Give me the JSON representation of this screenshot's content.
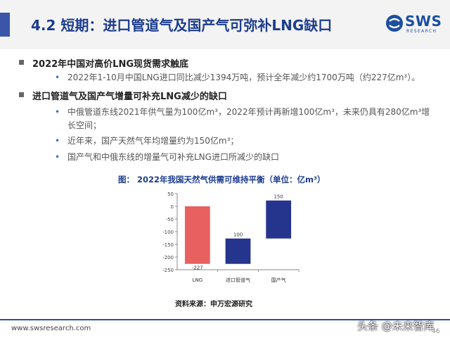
{
  "header": {
    "title": "4.2 短期：进口管道气及国产气可弥补LNG缺口",
    "logo_text": "SWS",
    "logo_sub": "RESEARCH"
  },
  "sections": [
    {
      "heading": "2022年中国对高价LNG现货需求触底",
      "bullets": [
        "2022年1-10月中国LNG进口同比减少1394万吨，预计全年减少约1700万吨（约227亿m³）。"
      ]
    },
    {
      "heading": "进口管道气及国产气增量可补充LNG减少的缺口",
      "bullets": [
        "中俄管道东线2021年供气量为100亿m³，2022年预计再新增100亿m³，未来仍具有280亿m³增长空间；",
        "近年来，国产天然气年均增量约为150亿m³；",
        "国产气和中俄东线的增量气可补充LNG进口所减少的缺口"
      ]
    }
  ],
  "chart": {
    "title": "图： 2022年我国天然气供需可维持平衡（单位：亿m³）",
    "source": "资料来源：申万宏源研究"
  },
  "chart_data": {
    "type": "bar",
    "subtype": "waterfall",
    "categories": [
      "LNG",
      "进口管道气",
      "国产气"
    ],
    "values": [
      -227,
      100,
      150
    ],
    "data_labels": [
      "-227",
      "100",
      "150"
    ],
    "ylim": [
      -250,
      50
    ],
    "yticks": [
      50,
      0,
      -50,
      -100,
      -150,
      -200,
      -250
    ],
    "colors": [
      "#e86060",
      "#25348c",
      "#25348c"
    ],
    "grid": false
  },
  "footer": {
    "url": "www.swsresearch.com",
    "page": "46",
    "watermark": "头条 @未来智库"
  }
}
